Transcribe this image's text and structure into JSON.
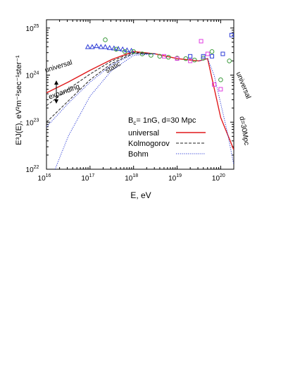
{
  "chart_data": {
    "type": "line",
    "x_label": "E, eV",
    "y_label": "E³J(E),  eV²m⁻²sec⁻¹ster⁻¹",
    "log_x": true,
    "log_y": true,
    "xlim": [
      1e+16,
      2e+20
    ],
    "ylim": [
      1e+22,
      1.5e+25
    ],
    "xticks": [
      {
        "value": 1e+16,
        "label": "10",
        "power": "16"
      },
      {
        "value": 1e+17,
        "label": "10",
        "power": "17"
      },
      {
        "value": 1e+18,
        "label": "10",
        "power": "18"
      },
      {
        "value": 1e+19,
        "label": "10",
        "power": "19"
      },
      {
        "value": 1e+20,
        "label": "10",
        "power": "20"
      }
    ],
    "yticks": [
      {
        "value": 1e+22,
        "label": "10",
        "power": "22"
      },
      {
        "value": 1e+23,
        "label": "10",
        "power": "23"
      },
      {
        "value": 1e+24,
        "label": "10",
        "power": "24"
      },
      {
        "value": 1e+25,
        "label": "10",
        "power": "25"
      }
    ],
    "legend_title": {
      "main": "B",
      "sub": "c",
      "rest": "= 1nG, d=30 Mpc"
    },
    "series": [
      {
        "name": "universal",
        "color": "#e0191b",
        "dash": "solid",
        "x": [
          1e+16,
          3.16e+16,
          1e+17,
          3.16e+17,
          1e+18,
          3.16e+18,
          1e+19,
          3.16e+19,
          5.01e+19,
          1e+20,
          2e+20
        ],
        "values": [
          4.2e+23,
          7.1e+23,
          1.26e+24,
          2.14e+24,
          3.16e+24,
          2.82e+24,
          2.24e+24,
          2e+24,
          2.24e+24,
          1.26e+23,
          2.6e+22
        ]
      },
      {
        "name": "Kolmogorov",
        "color": "#222222",
        "dash": "dashed",
        "x": [
          1e+16,
          3.16e+16,
          1e+17,
          3.16e+17,
          1e+18,
          3.16e+18
        ],
        "values": [
          2.24e+23,
          5.01e+23,
          1.05e+24,
          2e+24,
          3.02e+24,
          2.82e+24
        ]
      },
      {
        "color": "#222222",
        "dash": "dashed",
        "x": [
          1e+16,
          3.16e+16,
          1e+17,
          3.16e+17,
          1e+18,
          3.16e+18
        ],
        "values": [
          1e+23,
          2.82e+23,
          7.94e+23,
          1.78e+24,
          2.88e+24,
          2.82e+24
        ]
      },
      {
        "name": "Bohm",
        "color": "#2b3bd6",
        "dash": "dotted",
        "x": [
          1e+16,
          3.16e+16,
          1e+17,
          3.16e+17,
          1e+18,
          3.16e+18
        ],
        "values": [
          7.94e+22,
          2.51e+23,
          7.08e+23,
          1.66e+24,
          2.82e+24,
          2.82e+24
        ]
      },
      {
        "color": "#2b3bd6",
        "dash": "dotted",
        "x": [
          1.58e+16,
          3.16e+16,
          1e+17,
          3.16e+17,
          1e+18,
          3.16e+18
        ],
        "values": [
          1e+22,
          5.01e+22,
          3.55e+23,
          1.26e+24,
          2.63e+24,
          2.82e+24
        ]
      },
      {
        "color": "#2b3bd6",
        "dash": "dotted",
        "x": [
          3.16e+19,
          5.01e+19,
          7.08e+19,
          1e+20,
          1.41e+20,
          2e+20
        ],
        "values": [
          2e+24,
          2.24e+24,
          1e+24,
          2.51e+23,
          6.31e+22,
          1.26e+22
        ]
      }
    ],
    "points": [
      {
        "color": "#2b3bd6",
        "marker": "triangle",
        "x": [
          8.9e+16,
          1.12e+17,
          1.41e+17,
          1.78e+17,
          2.24e+17,
          2.82e+17,
          3.55e+17,
          4.47e+17,
          5.62e+17,
          7.08e+17,
          8.91e+17
        ],
        "values": [
          3.98e+24,
          3.98e+24,
          4.17e+24,
          3.98e+24,
          3.98e+24,
          3.8e+24,
          3.72e+24,
          3.63e+24,
          3.55e+24,
          3.39e+24,
          3.31e+24
        ]
      },
      {
        "color": "#3c9a3c",
        "marker": "circle",
        "x": [
          2.24e+17,
          3.98e+17,
          6.31e+17,
          1e+18,
          1.58e+18,
          2.51e+18,
          3.98e+18,
          6.31e+18,
          1e+19,
          1.58e+19,
          2.51e+19,
          3.98e+19,
          6.31e+19,
          1e+20,
          1.58e+20
        ],
        "values": [
          5.62e+24,
          3.55e+24,
          3.16e+24,
          3.16e+24,
          2.82e+24,
          2.63e+24,
          2.51e+24,
          2.4e+24,
          2.29e+24,
          2.24e+24,
          2.09e+24,
          2.29e+24,
          3.16e+24,
          7.94e+23,
          2e+24
        ]
      },
      {
        "color": "#e03ce0",
        "marker": "square",
        "x": [
          5.01e+18,
          1e+19,
          2e+19,
          3.55e+19,
          5.01e+19,
          7.08e+19,
          1e+20
        ],
        "values": [
          2.51e+24,
          2.24e+24,
          2e+24,
          5.25e+24,
          2.82e+24,
          6.31e+23,
          5.01e+23
        ]
      },
      {
        "color": "#2b3bd6",
        "marker": "square",
        "x": [
          2e+19,
          3.98e+19,
          6.31e+19,
          1.12e+20,
          1.78e+20
        ],
        "values": [
          2.51e+24,
          2.51e+24,
          2.51e+24,
          2.82e+24,
          7.08e+24
        ]
      }
    ],
    "annotations": [
      {
        "text": "universal",
        "color": "#e0191b"
      },
      {
        "text": "static",
        "color": "#2b3bd6"
      },
      {
        "text": "expanding",
        "color": "#000000"
      },
      {
        "text": "universal",
        "color": "#e0191b"
      },
      {
        "text": "d=30Mpc",
        "color": "#000000"
      }
    ]
  }
}
